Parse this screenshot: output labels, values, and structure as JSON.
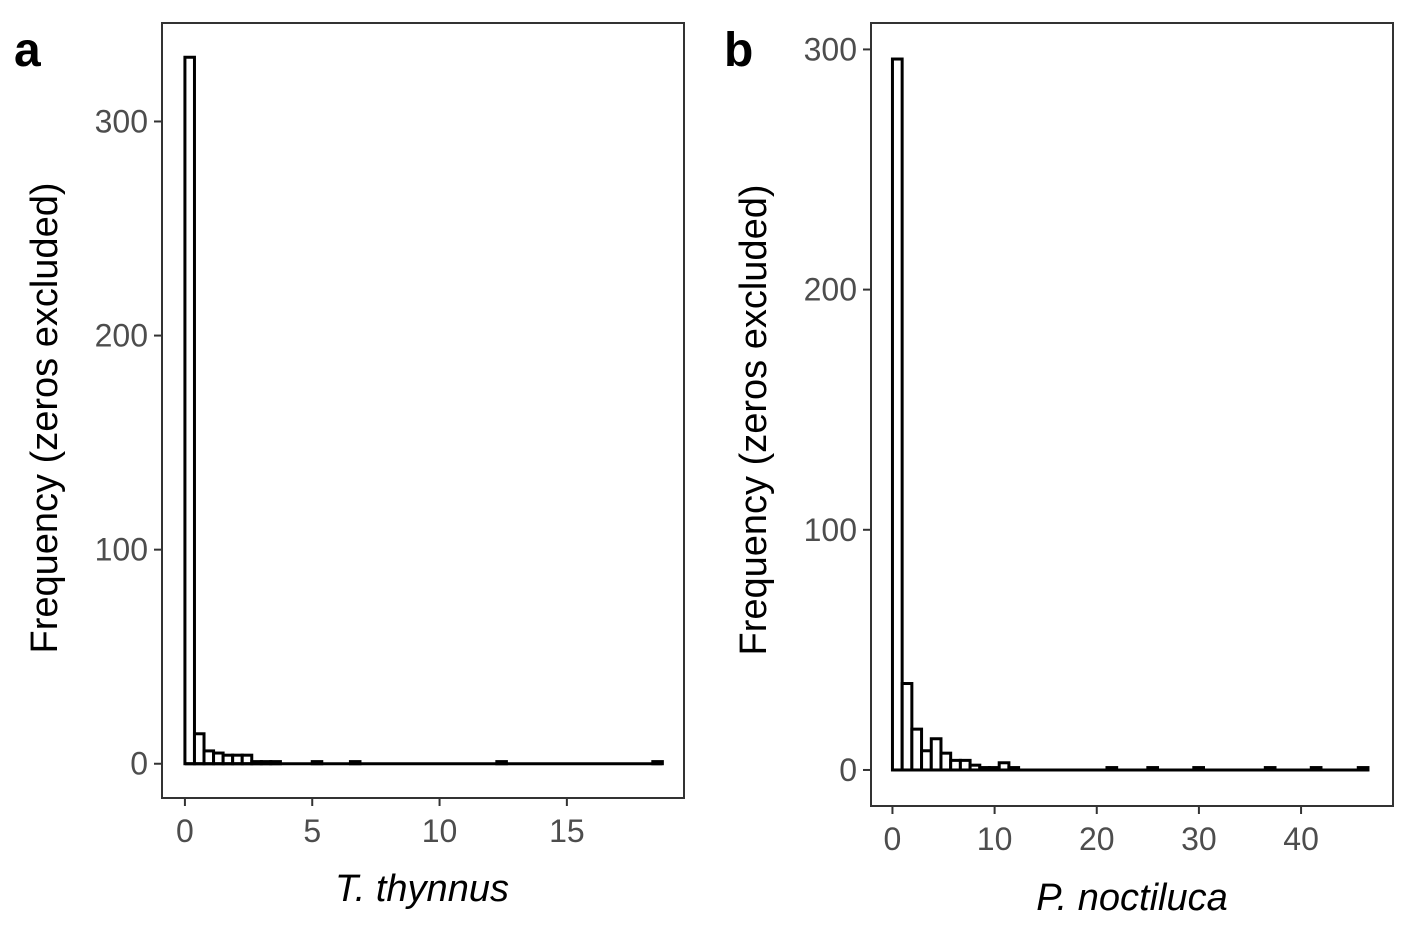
{
  "chart_data": [
    {
      "type": "bar",
      "panel_label": "a",
      "xlabel": "T. thynnus",
      "ylabel": "Frequency (zeros excluded)",
      "xlim": [
        -0.9,
        19.6
      ],
      "ylim": [
        -16,
        346
      ],
      "xticks": [
        0,
        5,
        10,
        15
      ],
      "yticks": [
        0,
        100,
        200,
        300
      ],
      "bin_width": 0.375,
      "bins": [
        {
          "x0": 0.0,
          "count": 330
        },
        {
          "x0": 0.375,
          "count": 14
        },
        {
          "x0": 0.75,
          "count": 6
        },
        {
          "x0": 1.125,
          "count": 5
        },
        {
          "x0": 1.5,
          "count": 4
        },
        {
          "x0": 1.875,
          "count": 4
        },
        {
          "x0": 2.25,
          "count": 4
        },
        {
          "x0": 2.625,
          "count": 1
        },
        {
          "x0": 3.0,
          "count": 1
        },
        {
          "x0": 3.375,
          "count": 1
        },
        {
          "x0": 5.0,
          "count": 1
        },
        {
          "x0": 6.5,
          "count": 1
        },
        {
          "x0": 12.25,
          "count": 1
        },
        {
          "x0": 18.375,
          "count": 1
        }
      ],
      "grid": false
    },
    {
      "type": "bar",
      "panel_label": "b",
      "xlabel": "P. noctiluca",
      "ylabel": "Frequency (zeros excluded)",
      "xlim": [
        -2.1,
        49.0
      ],
      "ylim": [
        -15,
        311
      ],
      "xticks": [
        0,
        10,
        20,
        30,
        40
      ],
      "yticks": [
        0,
        100,
        200,
        300
      ],
      "bin_width": 0.95,
      "bins": [
        {
          "x0": 0.0,
          "count": 296
        },
        {
          "x0": 0.95,
          "count": 36
        },
        {
          "x0": 1.9,
          "count": 17
        },
        {
          "x0": 2.85,
          "count": 8
        },
        {
          "x0": 3.8,
          "count": 13
        },
        {
          "x0": 4.75,
          "count": 7
        },
        {
          "x0": 5.7,
          "count": 4
        },
        {
          "x0": 6.65,
          "count": 4
        },
        {
          "x0": 7.6,
          "count": 2
        },
        {
          "x0": 8.55,
          "count": 1
        },
        {
          "x0": 9.5,
          "count": 1
        },
        {
          "x0": 10.45,
          "count": 3
        },
        {
          "x0": 11.4,
          "count": 1
        },
        {
          "x0": 21.0,
          "count": 1
        },
        {
          "x0": 25.0,
          "count": 1
        },
        {
          "x0": 29.5,
          "count": 1
        },
        {
          "x0": 36.5,
          "count": 1
        },
        {
          "x0": 41.0,
          "count": 1
        },
        {
          "x0": 45.6,
          "count": 1
        }
      ],
      "grid": false
    }
  ]
}
